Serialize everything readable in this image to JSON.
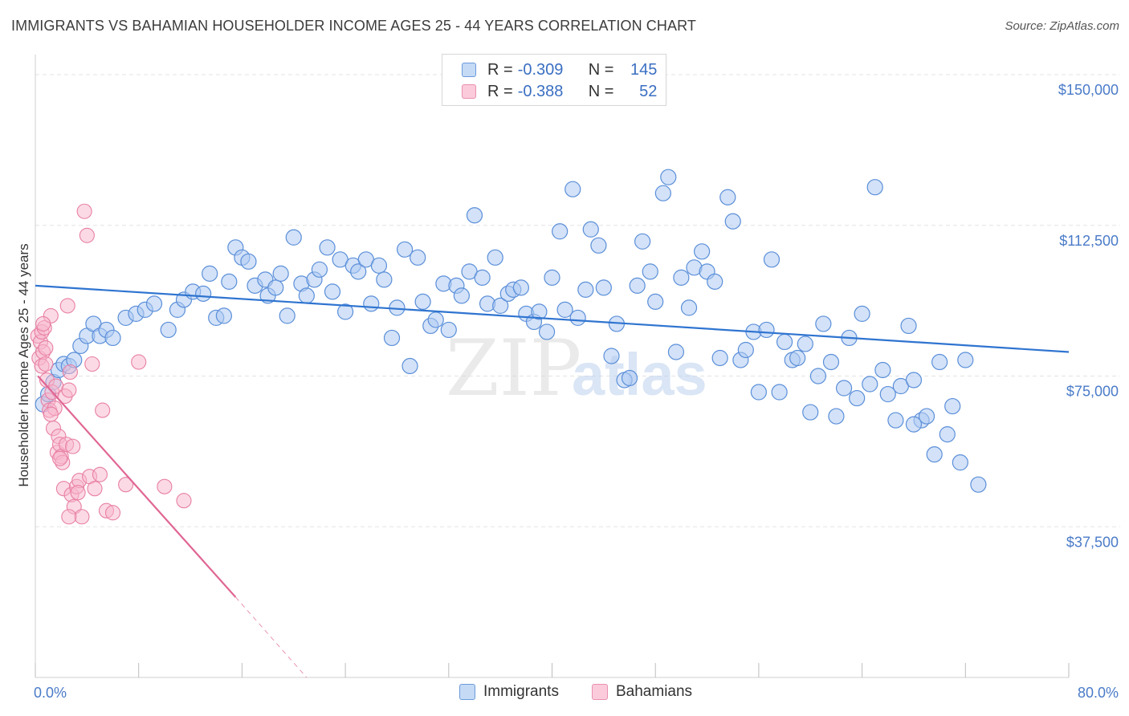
{
  "title": "IMMIGRANTS VS BAHAMIAN HOUSEHOLDER INCOME AGES 25 - 44 YEARS CORRELATION CHART",
  "source": "Source: ZipAtlas.com",
  "watermark": {
    "part1": "ZIP",
    "part2": "atlas"
  },
  "legend": {
    "rows": [
      {
        "r_label": "R = ",
        "r_value": "-0.309",
        "n_label": "N = ",
        "n_value": "145"
      },
      {
        "r_label": "R = ",
        "r_value": "-0.388",
        "n_label": "N = ",
        "n_value": "52"
      }
    ]
  },
  "bottom_legend": {
    "immigrants": "Immigrants",
    "bahamians": "Bahamians"
  },
  "colors": {
    "immigrants_fill": "#aecbf2",
    "immigrants_stroke": "#5b8fd9",
    "immigrants_line": "#2f74d0",
    "bahamians_fill": "#f7b6cb",
    "bahamians_stroke": "#e87fa3",
    "bahamians_line": "#e06693",
    "tick_text": "#4a7bc8",
    "grid": "#e3e3e3"
  },
  "chart_data": {
    "type": "scatter",
    "title": "IMMIGRANTS VS BAHAMIAN HOUSEHOLDER INCOME AGES 25 - 44 YEARS CORRELATION CHART",
    "xlabel": "",
    "ylabel": "Householder Income Ages 25 - 44 years",
    "xlim": [
      0,
      80
    ],
    "ylim": [
      0,
      153000
    ],
    "x_tick_labels": [
      "0.0%",
      "80.0%"
    ],
    "y_ticks": [
      37500,
      75000,
      112500,
      150000
    ],
    "y_tick_labels": [
      "$37,500",
      "$75,000",
      "$112,500",
      "$150,000"
    ],
    "grid": true,
    "legend_placement": "top-center",
    "series": [
      {
        "name": "Immigrants",
        "r": -0.309,
        "n": 145,
        "trend": {
          "x": [
            0,
            80
          ],
          "y": [
            97500,
            81000
          ]
        },
        "points": [
          [
            0.6,
            68000
          ],
          [
            1.0,
            70500
          ],
          [
            1.4,
            73500
          ],
          [
            1.8,
            76500
          ],
          [
            2.2,
            78000
          ],
          [
            2.6,
            77500
          ],
          [
            3.0,
            79000
          ],
          [
            3.5,
            82500
          ],
          [
            4.0,
            85000
          ],
          [
            4.5,
            88000
          ],
          [
            5.0,
            85000
          ],
          [
            5.5,
            86500
          ],
          [
            6.0,
            84500
          ],
          [
            7.0,
            89500
          ],
          [
            7.8,
            90500
          ],
          [
            8.5,
            91500
          ],
          [
            9.2,
            93000
          ],
          [
            10.3,
            86500
          ],
          [
            11.0,
            91500
          ],
          [
            11.5,
            94000
          ],
          [
            12.2,
            96000
          ],
          [
            13.0,
            95500
          ],
          [
            13.5,
            100500
          ],
          [
            14.0,
            89500
          ],
          [
            14.6,
            90000
          ],
          [
            15.0,
            98500
          ],
          [
            15.5,
            107000
          ],
          [
            16.0,
            104500
          ],
          [
            16.5,
            103500
          ],
          [
            17.0,
            97500
          ],
          [
            17.8,
            99000
          ],
          [
            18.0,
            95000
          ],
          [
            18.6,
            97000
          ],
          [
            19.0,
            100500
          ],
          [
            19.5,
            90000
          ],
          [
            20.0,
            109500
          ],
          [
            20.6,
            98000
          ],
          [
            21.0,
            95000
          ],
          [
            21.6,
            99000
          ],
          [
            22.0,
            101500
          ],
          [
            22.6,
            107000
          ],
          [
            23.0,
            96000
          ],
          [
            23.6,
            104000
          ],
          [
            24.0,
            91000
          ],
          [
            24.6,
            102500
          ],
          [
            25.0,
            101000
          ],
          [
            25.6,
            104000
          ],
          [
            26.0,
            93000
          ],
          [
            26.6,
            102500
          ],
          [
            27.0,
            99000
          ],
          [
            27.6,
            84500
          ],
          [
            28.0,
            92000
          ],
          [
            28.6,
            106500
          ],
          [
            29.0,
            77500
          ],
          [
            29.6,
            104500
          ],
          [
            30.0,
            93500
          ],
          [
            30.6,
            87500
          ],
          [
            31.0,
            89000
          ],
          [
            31.6,
            98000
          ],
          [
            32.0,
            86500
          ],
          [
            32.6,
            97500
          ],
          [
            33.0,
            95000
          ],
          [
            33.6,
            101000
          ],
          [
            34.0,
            115000
          ],
          [
            34.6,
            99500
          ],
          [
            35.0,
            93000
          ],
          [
            35.6,
            104500
          ],
          [
            36.0,
            92500
          ],
          [
            36.6,
            95500
          ],
          [
            37.0,
            96500
          ],
          [
            37.6,
            97000
          ],
          [
            38.0,
            90500
          ],
          [
            38.6,
            88500
          ],
          [
            39.0,
            91000
          ],
          [
            39.6,
            86000
          ],
          [
            40.0,
            99500
          ],
          [
            40.6,
            111000
          ],
          [
            41.0,
            91500
          ],
          [
            41.6,
            121500
          ],
          [
            42.0,
            89500
          ],
          [
            42.6,
            96500
          ],
          [
            43.0,
            111500
          ],
          [
            43.6,
            107500
          ],
          [
            44.0,
            97000
          ],
          [
            44.6,
            80000
          ],
          [
            45.0,
            88000
          ],
          [
            45.6,
            74000
          ],
          [
            46.0,
            74500
          ],
          [
            46.6,
            97500
          ],
          [
            47.0,
            108500
          ],
          [
            47.6,
            101000
          ],
          [
            48.0,
            93500
          ],
          [
            48.6,
            120500
          ],
          [
            49.0,
            124500
          ],
          [
            49.6,
            81000
          ],
          [
            50.0,
            99500
          ],
          [
            50.6,
            92000
          ],
          [
            51.0,
            102000
          ],
          [
            51.6,
            106000
          ],
          [
            52.0,
            101000
          ],
          [
            52.6,
            98500
          ],
          [
            53.0,
            79500
          ],
          [
            53.6,
            119500
          ],
          [
            54.0,
            113500
          ],
          [
            54.6,
            79000
          ],
          [
            55.0,
            81500
          ],
          [
            55.6,
            86000
          ],
          [
            56.0,
            71000
          ],
          [
            56.6,
            86500
          ],
          [
            57.0,
            104000
          ],
          [
            57.6,
            71000
          ],
          [
            58.0,
            83500
          ],
          [
            58.6,
            79000
          ],
          [
            59.0,
            79500
          ],
          [
            59.6,
            83000
          ],
          [
            60.0,
            66000
          ],
          [
            60.6,
            75000
          ],
          [
            61.0,
            88000
          ],
          [
            61.6,
            78500
          ],
          [
            62.0,
            65000
          ],
          [
            62.6,
            72000
          ],
          [
            63.0,
            84500
          ],
          [
            63.6,
            69500
          ],
          [
            64.0,
            90500
          ],
          [
            64.6,
            73000
          ],
          [
            65.0,
            122000
          ],
          [
            65.6,
            76500
          ],
          [
            66.0,
            70500
          ],
          [
            66.6,
            64000
          ],
          [
            67.0,
            72500
          ],
          [
            67.6,
            87500
          ],
          [
            68.0,
            74000
          ],
          [
            68.6,
            64000
          ],
          [
            69.0,
            65000
          ],
          [
            69.6,
            55500
          ],
          [
            70.0,
            78500
          ],
          [
            70.6,
            60500
          ],
          [
            71.0,
            67500
          ],
          [
            71.6,
            53500
          ],
          [
            72.0,
            79000
          ],
          [
            73.0,
            48000
          ],
          [
            68.0,
            63000
          ]
        ]
      },
      {
        "name": "Bahamians",
        "r": -0.388,
        "n": 52,
        "trend": {
          "x": [
            0.2,
            15.5
          ],
          "y": [
            75000,
            20000
          ],
          "dashed_to": {
            "x": 21,
            "y": 0
          }
        },
        "points": [
          [
            0.2,
            85000
          ],
          [
            0.3,
            79500
          ],
          [
            0.4,
            83500
          ],
          [
            0.5,
            86000
          ],
          [
            0.5,
            77500
          ],
          [
            0.6,
            81000
          ],
          [
            0.7,
            87000
          ],
          [
            0.8,
            78000
          ],
          [
            0.9,
            74000
          ],
          [
            1.0,
            69000
          ],
          [
            1.1,
            66500
          ],
          [
            1.2,
            90000
          ],
          [
            1.3,
            71000
          ],
          [
            1.4,
            62000
          ],
          [
            1.5,
            67000
          ],
          [
            1.6,
            72500
          ],
          [
            1.7,
            56000
          ],
          [
            1.8,
            60000
          ],
          [
            1.9,
            58000
          ],
          [
            2.0,
            55000
          ],
          [
            2.1,
            53500
          ],
          [
            2.2,
            47000
          ],
          [
            2.3,
            70000
          ],
          [
            2.4,
            58000
          ],
          [
            2.5,
            92500
          ],
          [
            2.6,
            71500
          ],
          [
            2.7,
            76000
          ],
          [
            2.8,
            45500
          ],
          [
            2.9,
            57500
          ],
          [
            3.0,
            42500
          ],
          [
            3.2,
            47500
          ],
          [
            3.4,
            49000
          ],
          [
            3.6,
            40000
          ],
          [
            3.8,
            116000
          ],
          [
            4.0,
            110000
          ],
          [
            4.2,
            50000
          ],
          [
            4.4,
            78000
          ],
          [
            4.6,
            47000
          ],
          [
            5.0,
            50500
          ],
          [
            5.5,
            41500
          ],
          [
            6.0,
            41000
          ],
          [
            7.0,
            48000
          ],
          [
            8.0,
            78500
          ],
          [
            10.0,
            47500
          ],
          [
            11.5,
            44000
          ],
          [
            5.2,
            66500
          ],
          [
            1.9,
            54500
          ],
          [
            2.6,
            40000
          ],
          [
            0.8,
            82000
          ],
          [
            1.2,
            65500
          ],
          [
            3.3,
            46000
          ],
          [
            0.6,
            88000
          ]
        ]
      }
    ]
  }
}
